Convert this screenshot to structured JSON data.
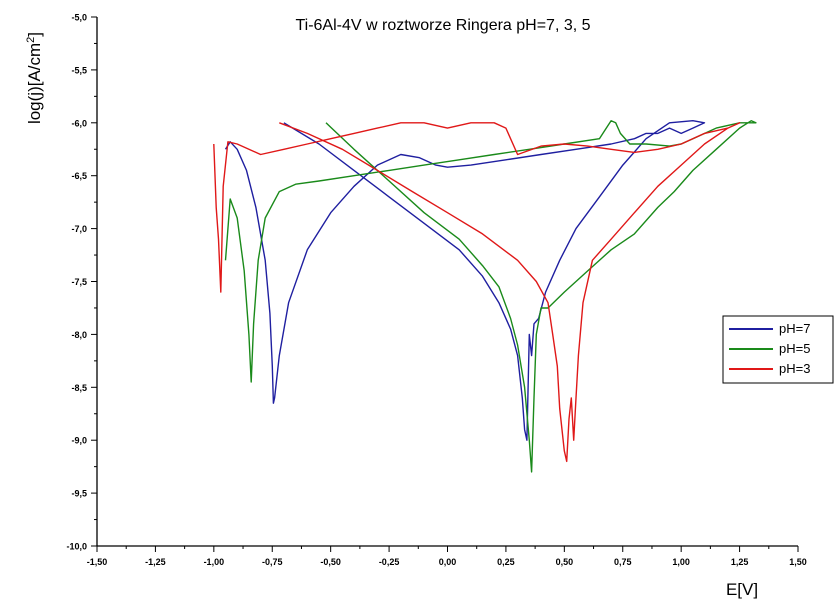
{
  "chart_data": {
    "type": "line",
    "title": "Ti-6Al-4V w roztworze Ringera pH=7, 3, 5",
    "xlabel": "E[V]",
    "ylabel_main": "log(j)[A/cm",
    "ylabel_sup": "2",
    "ylabel_end": "]",
    "xlim": [
      -1.5,
      1.5
    ],
    "ylim": [
      -10.0,
      -5.0
    ],
    "x_ticks": [
      -1.5,
      -1.25,
      -1.0,
      -0.75,
      -0.5,
      -0.25,
      0.0,
      0.25,
      0.5,
      0.75,
      1.0,
      1.25,
      1.5
    ],
    "x_tick_labels": [
      "-1,50",
      "-1,25",
      "-1,00",
      "-0,75",
      "-0,50",
      "-0,25",
      "0,00",
      "0,25",
      "0,50",
      "0,75",
      "1,00",
      "1,25",
      "1,50"
    ],
    "y_ticks": [
      -5.0,
      -5.5,
      -6.0,
      -6.5,
      -7.0,
      -7.5,
      -8.0,
      -8.5,
      -9.0,
      -9.5,
      -10.0
    ],
    "y_tick_labels": [
      "-5,0",
      "-5,5",
      "-6,0",
      "-6,5",
      "-7,0",
      "-7,5",
      "-8,0",
      "-8,5",
      "-9,0",
      "-9,5",
      "-10,0"
    ],
    "legend_position": "right",
    "series": [
      {
        "name": "pH=7",
        "color": "#1f1fa0",
        "x": [
          -0.7,
          -0.55,
          -0.4,
          -0.25,
          -0.1,
          0.05,
          0.15,
          0.22,
          0.27,
          0.3,
          0.32,
          0.33,
          0.34,
          0.345,
          0.35,
          0.36,
          0.37,
          0.39,
          0.42,
          0.48,
          0.55,
          0.65,
          0.75,
          0.85,
          0.95,
          1.05,
          1.1,
          1.05,
          1.0,
          0.95,
          0.9,
          0.85,
          0.8,
          0.7,
          0.55,
          0.4,
          0.25,
          0.1,
          0.0,
          -0.05,
          -0.12,
          -0.2,
          -0.3,
          -0.4,
          -0.5,
          -0.6,
          -0.68,
          -0.72,
          -0.74,
          -0.745,
          -0.75,
          -0.76,
          -0.78,
          -0.82,
          -0.86,
          -0.9,
          -0.93,
          -0.95
        ],
        "y": [
          -6.0,
          -6.2,
          -6.45,
          -6.7,
          -6.95,
          -7.2,
          -7.45,
          -7.7,
          -7.95,
          -8.2,
          -8.6,
          -8.9,
          -9.0,
          -8.5,
          -8.0,
          -8.2,
          -7.9,
          -7.85,
          -7.6,
          -7.3,
          -7.0,
          -6.7,
          -6.4,
          -6.15,
          -6.0,
          -5.98,
          -6.0,
          -6.05,
          -6.1,
          -6.05,
          -6.1,
          -6.1,
          -6.15,
          -6.2,
          -6.25,
          -6.3,
          -6.35,
          -6.4,
          -6.42,
          -6.4,
          -6.33,
          -6.3,
          -6.4,
          -6.6,
          -6.85,
          -7.2,
          -7.7,
          -8.2,
          -8.6,
          -8.65,
          -8.3,
          -7.8,
          -7.3,
          -6.8,
          -6.45,
          -6.25,
          -6.18,
          -6.25
        ]
      },
      {
        "name": "pH=5",
        "color": "#1a8a1a",
        "x": [
          -0.52,
          -0.4,
          -0.25,
          -0.1,
          0.05,
          0.15,
          0.22,
          0.27,
          0.3,
          0.33,
          0.35,
          0.36,
          0.37,
          0.38,
          0.4,
          0.43,
          0.5,
          0.6,
          0.7,
          0.8,
          0.9,
          0.97,
          1.05,
          1.15,
          1.25,
          1.3,
          1.32,
          1.25,
          1.15,
          1.05,
          1.0,
          0.95,
          0.85,
          0.78,
          0.74,
          0.72,
          0.7,
          0.65,
          0.5,
          0.35,
          0.2,
          0.05,
          -0.1,
          -0.25,
          -0.4,
          -0.55,
          -0.65,
          -0.72,
          -0.78,
          -0.81,
          -0.83,
          -0.84,
          -0.85,
          -0.87,
          -0.9,
          -0.93,
          -0.95
        ],
        "y": [
          -6.0,
          -6.25,
          -6.55,
          -6.85,
          -7.1,
          -7.35,
          -7.55,
          -7.85,
          -8.1,
          -8.5,
          -9.0,
          -9.3,
          -8.6,
          -8.0,
          -7.75,
          -7.75,
          -7.6,
          -7.4,
          -7.2,
          -7.05,
          -6.8,
          -6.65,
          -6.45,
          -6.25,
          -6.05,
          -5.98,
          -6.0,
          -6.0,
          -6.05,
          -6.15,
          -6.2,
          -6.22,
          -6.2,
          -6.2,
          -6.1,
          -6.0,
          -5.98,
          -6.15,
          -6.2,
          -6.25,
          -6.3,
          -6.35,
          -6.4,
          -6.45,
          -6.5,
          -6.55,
          -6.58,
          -6.65,
          -6.9,
          -7.3,
          -7.9,
          -8.45,
          -8.0,
          -7.4,
          -6.9,
          -6.72,
          -7.3
        ]
      },
      {
        "name": "pH=3",
        "color": "#e01818",
        "x": [
          -0.72,
          -0.6,
          -0.45,
          -0.3,
          -0.15,
          0.0,
          0.15,
          0.3,
          0.38,
          0.43,
          0.45,
          0.47,
          0.48,
          0.5,
          0.51,
          0.52,
          0.53,
          0.54,
          0.55,
          0.56,
          0.58,
          0.62,
          0.7,
          0.8,
          0.9,
          1.0,
          1.1,
          1.2,
          1.25,
          1.2,
          1.1,
          1.0,
          0.9,
          0.8,
          0.7,
          0.6,
          0.5,
          0.4,
          0.3,
          0.25,
          0.2,
          0.1,
          0.0,
          -0.1,
          -0.2,
          -0.3,
          -0.4,
          -0.5,
          -0.6,
          -0.7,
          -0.8,
          -0.9,
          -0.94,
          -0.96,
          -0.97,
          -0.98,
          -0.99,
          -1.0
        ],
        "y": [
          -6.0,
          -6.1,
          -6.25,
          -6.45,
          -6.65,
          -6.85,
          -7.05,
          -7.3,
          -7.5,
          -7.7,
          -8.0,
          -8.3,
          -8.7,
          -9.1,
          -9.2,
          -8.8,
          -8.6,
          -9.0,
          -8.6,
          -8.2,
          -7.7,
          -7.3,
          -7.1,
          -6.85,
          -6.6,
          -6.4,
          -6.2,
          -6.05,
          -6.0,
          -6.05,
          -6.1,
          -6.2,
          -6.25,
          -6.28,
          -6.25,
          -6.22,
          -6.2,
          -6.22,
          -6.3,
          -6.05,
          -6.0,
          -6.0,
          -6.05,
          -6.0,
          -6.0,
          -6.05,
          -6.1,
          -6.15,
          -6.2,
          -6.25,
          -6.3,
          -6.2,
          -6.18,
          -6.6,
          -7.6,
          -7.1,
          -6.8,
          -6.2
        ]
      }
    ]
  }
}
